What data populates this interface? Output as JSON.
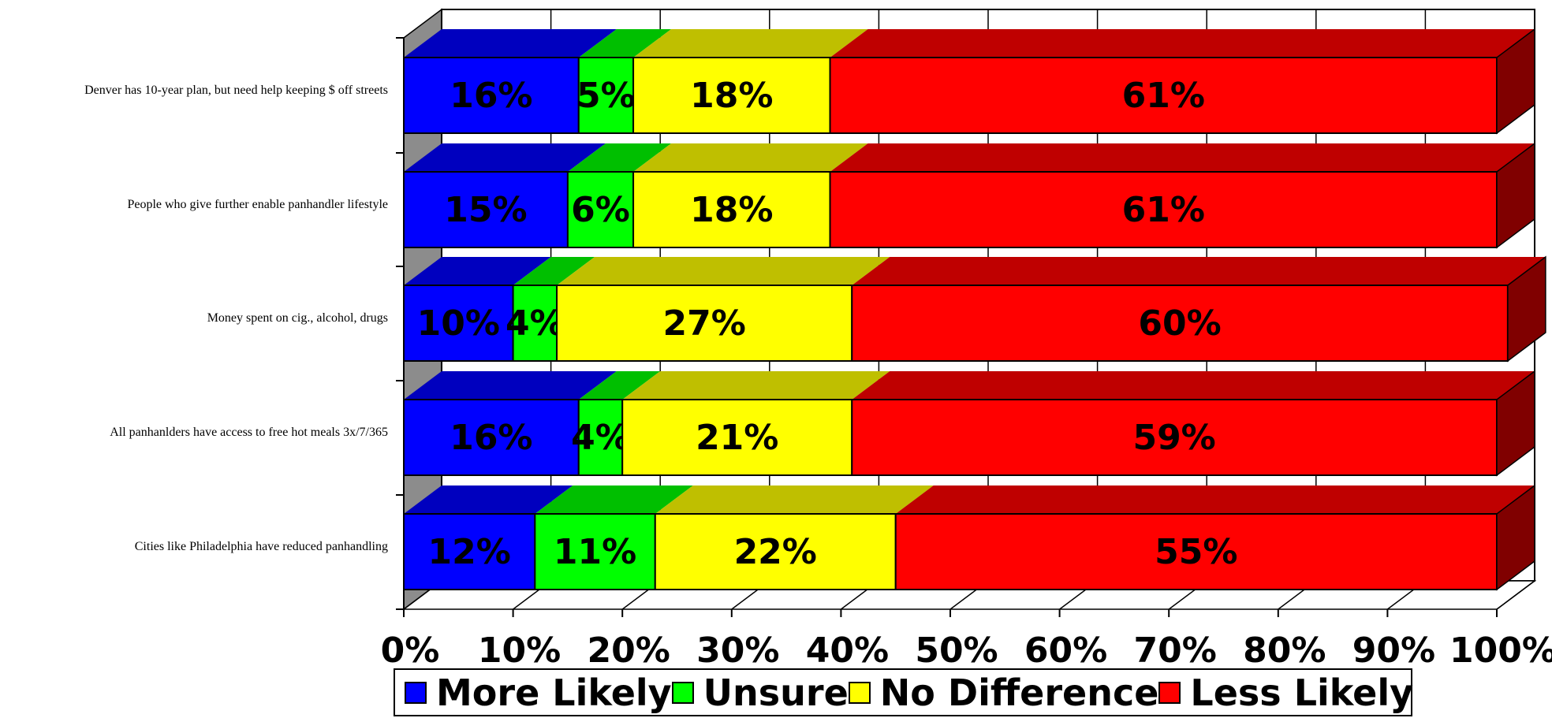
{
  "chart_data": {
    "type": "bar",
    "orientation": "horizontal",
    "stacked": true,
    "percent_stacked": true,
    "three_d": true,
    "title": "",
    "xlabel": "",
    "ylabel": "",
    "xlim": [
      0,
      100
    ],
    "x_ticks": [
      "0%",
      "10%",
      "20%",
      "30%",
      "40%",
      "50%",
      "60%",
      "70%",
      "80%",
      "90%",
      "100%"
    ],
    "grid": true,
    "legend_position": "bottom",
    "categories": [
      "Denver has 10-year plan, but need help keeping $ off streets",
      "People who give further enable panhandler lifestyle",
      "Money spent on cig., alcohol, drugs",
      "All panhanlders have access to free hot meals 3x/7/365",
      "Cities like Philadelphia have reduced panhandling"
    ],
    "series": [
      {
        "name": "More Likely",
        "color": "#0000ff",
        "values": [
          16,
          15,
          10,
          16,
          12
        ],
        "labels": [
          "16%",
          "15%",
          "10%",
          "16%",
          "12%"
        ]
      },
      {
        "name": "Unsure",
        "color": "#00ff00",
        "values": [
          5,
          6,
          4,
          4,
          11
        ],
        "labels": [
          "5%",
          "6%",
          "4%",
          "4%",
          "11%"
        ]
      },
      {
        "name": "No Difference",
        "color": "#ffff00",
        "values": [
          18,
          18,
          27,
          21,
          22
        ],
        "labels": [
          "18%",
          "18%",
          "27%",
          "21%",
          "22%"
        ]
      },
      {
        "name": "Less Likely",
        "color": "#ff0000",
        "values": [
          61,
          61,
          60,
          59,
          55
        ],
        "labels": [
          "61%",
          "61%",
          "60%",
          "59%",
          "55%"
        ]
      }
    ]
  }
}
